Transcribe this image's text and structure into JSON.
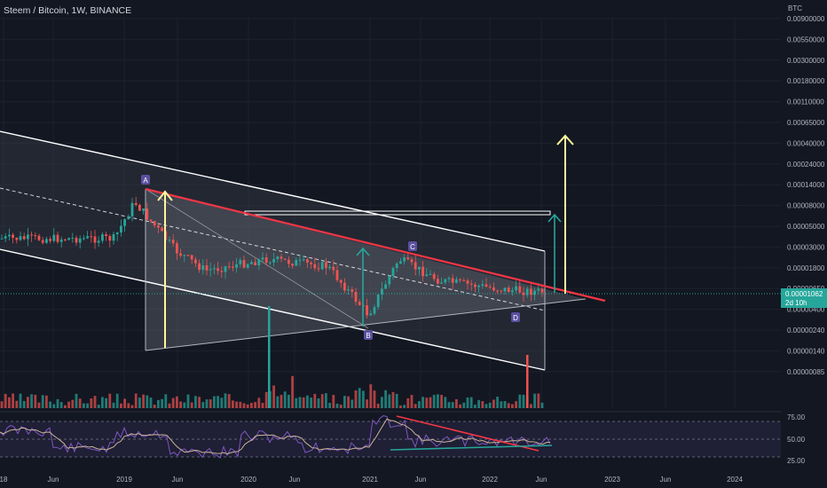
{
  "header": {
    "symbol_line": "Steem / Bitcoin, 1W, BINANCE",
    "currency": "BTC"
  },
  "price_panel": {
    "current_price": "0.00001062",
    "countdown": "2d 10h",
    "pattern_points": [
      "A",
      "B",
      "C",
      "D"
    ]
  },
  "rsi_panel": {
    "ticks": [
      "75.00",
      "50.00",
      "25.00"
    ]
  },
  "colors": {
    "background": "#131722",
    "up": "#26a69a",
    "down": "#ef5350",
    "resistance": "#f23645",
    "arrow_yellow": "#fff59d",
    "arrow_green": "#26a69a",
    "rsi_line": "#7e57c2",
    "rsi_ma": "#c9b49a",
    "label_bg": "#5b4fa0"
  },
  "chart_data": {
    "type": "candlestick",
    "title": "Steem / Bitcoin, 1W, BINANCE",
    "y_scale": "log",
    "y_ticks": [
      "0.00900000",
      "0.00550000",
      "0.00300000",
      "0.00180000",
      "0.00110000",
      "0.00065000",
      "0.00040000",
      "0.00024000",
      "0.00014000",
      "0.00008000",
      "0.00005000",
      "0.00003000",
      "0.00001800",
      "0.00001062",
      "0.00000650",
      "0.00000400",
      "0.00000240",
      "0.00000140",
      "0.00000085"
    ],
    "x_ticks": [
      "18",
      "Jun",
      "2019",
      "Jun",
      "2020",
      "Jun",
      "2021",
      "Jun",
      "2022",
      "Jun",
      "2023",
      "Jun",
      "2024"
    ],
    "approx_price_path": [
      {
        "x": "2018-12",
        "y": 4e-05
      },
      {
        "x": "2019-02",
        "y": 0.0001
      },
      {
        "x": "2019-06",
        "y": 3e-05
      },
      {
        "x": "2019-09",
        "y": 1.8e-05
      },
      {
        "x": "2020-03",
        "y": 2.4e-05
      },
      {
        "x": "2020-09",
        "y": 2e-05
      },
      {
        "x": "2021-01",
        "y": 6e-06
      },
      {
        "x": "2021-04",
        "y": 2.4e-05
      },
      {
        "x": "2021-08",
        "y": 1.4e-05
      },
      {
        "x": "2022-03",
        "y": 1.1e-05
      },
      {
        "x": "2022-06",
        "y": 1.062e-05
      }
    ]
  }
}
